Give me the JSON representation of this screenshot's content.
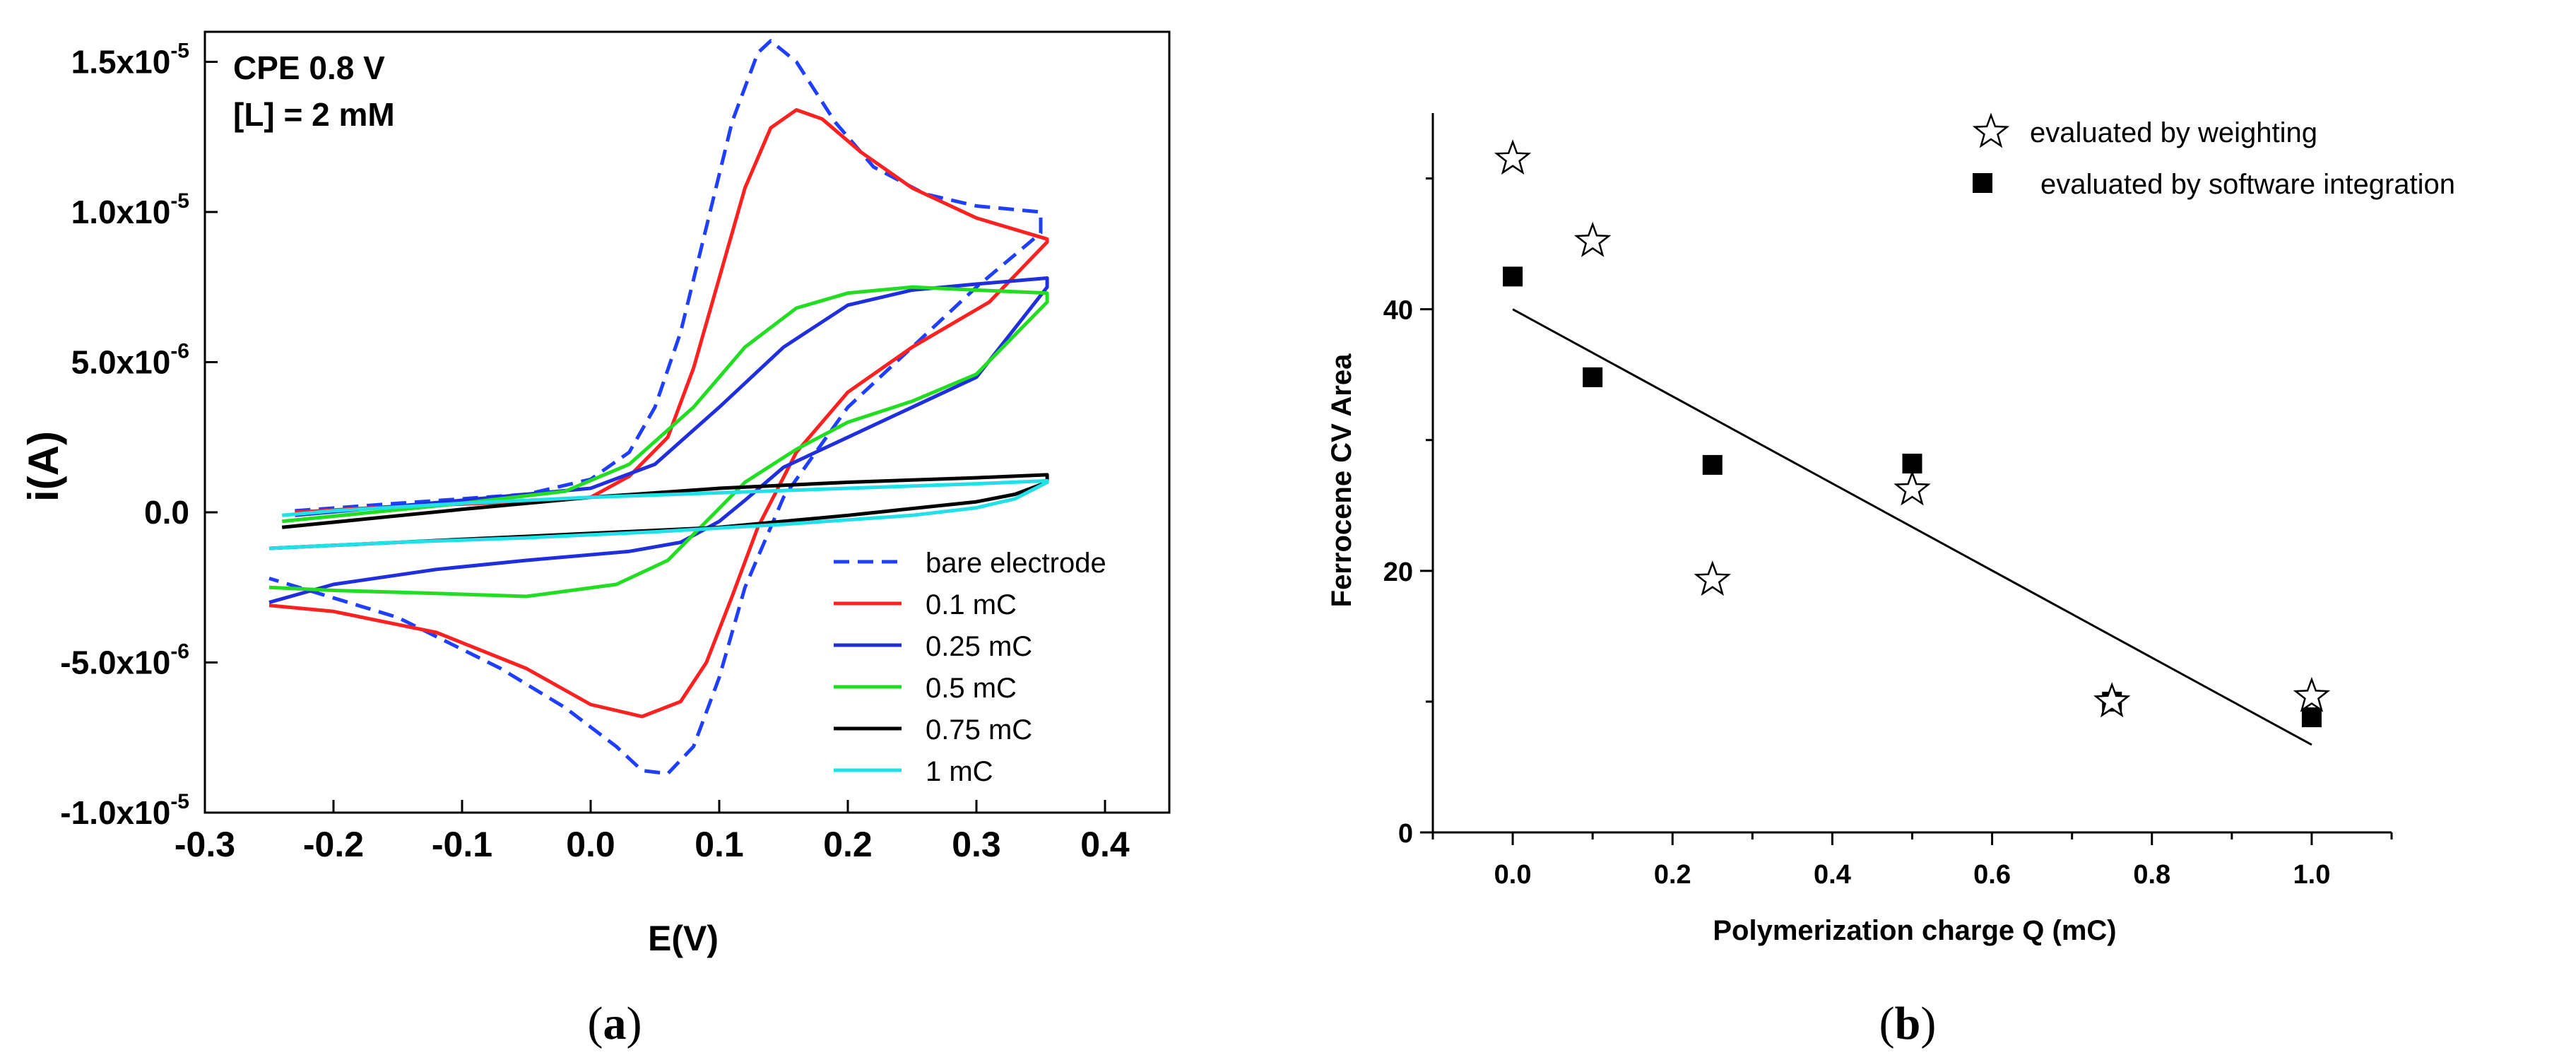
{
  "chart_data": [
    {
      "type": "line",
      "panel_label": "(a)",
      "panel_label_bold": "a",
      "annotation": [
        "CPE 0.8 V",
        "[L] = 2 mM"
      ],
      "xlabel": "E(V)",
      "ylabel": "i(A)",
      "xlim": [
        -0.3,
        0.45
      ],
      "ylim": [
        -1e-05,
        1.6e-05
      ],
      "x_ticks": [
        -0.3,
        -0.2,
        -0.1,
        0.0,
        0.1,
        0.2,
        0.3,
        0.4
      ],
      "x_tick_labels": [
        "-0.3",
        "-0.2",
        "-0.1",
        "0.0",
        "0.1",
        "0.2",
        "0.3",
        "0.4"
      ],
      "y_ticks": [
        -1e-05,
        -5e-06,
        0,
        5e-06,
        1e-05,
        1.5e-05
      ],
      "y_tick_labels": [
        {
          "mantissa": "-1.0x10",
          "exp": "-5"
        },
        {
          "mantissa": "-5.0x10",
          "exp": "-6"
        },
        {
          "mantissa": "0.0",
          "exp": ""
        },
        {
          "mantissa": "5.0x10",
          "exp": "-6"
        },
        {
          "mantissa": "1.0x10",
          "exp": "-5"
        },
        {
          "mantissa": "1.5x10",
          "exp": "-5"
        }
      ],
      "legend_position": "lower-right",
      "series": [
        {
          "name": "bare electrode",
          "color": "#1f3fff",
          "dash": true,
          "points": [
            [
              -0.23,
              5e-08
            ],
            [
              -0.15,
              3e-07
            ],
            [
              -0.05,
              6e-07
            ],
            [
              0.0,
              1.1e-06
            ],
            [
              0.03,
              2e-06
            ],
            [
              0.05,
              3.5e-06
            ],
            [
              0.07,
              6e-06
            ],
            [
              0.09,
              9.5e-06
            ],
            [
              0.11,
              1.3e-05
            ],
            [
              0.13,
              1.53e-05
            ],
            [
              0.14,
              1.57e-05
            ],
            [
              0.16,
              1.5e-05
            ],
            [
              0.19,
              1.3e-05
            ],
            [
              0.22,
              1.15e-05
            ],
            [
              0.26,
              1.06e-05
            ],
            [
              0.3,
              1.02e-05
            ],
            [
              0.35,
              1e-05
            ],
            [
              0.35,
              9.3e-06
            ],
            [
              0.3,
              7.5e-06
            ],
            [
              0.25,
              5.5e-06
            ],
            [
              0.2,
              3.5e-06
            ],
            [
              0.15,
              5e-07
            ],
            [
              0.12,
              -2.5e-06
            ],
            [
              0.1,
              -5.5e-06
            ],
            [
              0.08,
              -7.8e-06
            ],
            [
              0.06,
              -8.7e-06
            ],
            [
              0.04,
              -8.6e-06
            ],
            [
              0.02,
              -7.8e-06
            ],
            [
              -0.02,
              -6.5e-06
            ],
            [
              -0.07,
              -5.2e-06
            ],
            [
              -0.15,
              -3.5e-06
            ],
            [
              -0.25,
              -2.2e-06
            ]
          ]
        },
        {
          "name": "0.1 mC",
          "color": "#ff2020",
          "dash": false,
          "points": [
            [
              -0.23,
              0.0
            ],
            [
              -0.15,
              2e-07
            ],
            [
              -0.05,
              3.5e-07
            ],
            [
              0.0,
              5e-07
            ],
            [
              0.03,
              1.2e-06
            ],
            [
              0.06,
              2.5e-06
            ],
            [
              0.08,
              4.8e-06
            ],
            [
              0.1,
              7.8e-06
            ],
            [
              0.12,
              1.08e-05
            ],
            [
              0.14,
              1.28e-05
            ],
            [
              0.16,
              1.34e-05
            ],
            [
              0.18,
              1.31e-05
            ],
            [
              0.21,
              1.2e-05
            ],
            [
              0.25,
              1.08e-05
            ],
            [
              0.3,
              9.8e-06
            ],
            [
              0.355,
              9.1e-06
            ],
            [
              0.355,
              9e-06
            ],
            [
              0.31,
              7e-06
            ],
            [
              0.25,
              5.5e-06
            ],
            [
              0.2,
              4e-06
            ],
            [
              0.16,
              2e-06
            ],
            [
              0.13,
              -5e-07
            ],
            [
              0.11,
              -2.8e-06
            ],
            [
              0.09,
              -5e-06
            ],
            [
              0.07,
              -6.3e-06
            ],
            [
              0.04,
              -6.8e-06
            ],
            [
              0.0,
              -6.4e-06
            ],
            [
              -0.05,
              -5.2e-06
            ],
            [
              -0.12,
              -4e-06
            ],
            [
              -0.2,
              -3.3e-06
            ],
            [
              -0.25,
              -3.1e-06
            ]
          ]
        },
        {
          "name": "0.25 mC",
          "color": "#1f2fdd",
          "dash": false,
          "points": [
            [
              -0.23,
              -1e-07
            ],
            [
              -0.1,
              4e-07
            ],
            [
              0.0,
              8e-07
            ],
            [
              0.05,
              1.6e-06
            ],
            [
              0.1,
              3.5e-06
            ],
            [
              0.15,
              5.5e-06
            ],
            [
              0.2,
              6.9e-06
            ],
            [
              0.25,
              7.4e-06
            ],
            [
              0.3,
              7.6e-06
            ],
            [
              0.355,
              7.8e-06
            ],
            [
              0.355,
              7.5e-06
            ],
            [
              0.3,
              4.5e-06
            ],
            [
              0.25,
              3.5e-06
            ],
            [
              0.2,
              2.5e-06
            ],
            [
              0.15,
              1.5e-06
            ],
            [
              0.12,
              4e-07
            ],
            [
              0.1,
              -3e-07
            ],
            [
              0.07,
              -1e-06
            ],
            [
              0.03,
              -1.3e-06
            ],
            [
              -0.05,
              -1.6e-06
            ],
            [
              -0.12,
              -1.9e-06
            ],
            [
              -0.2,
              -2.4e-06
            ],
            [
              -0.25,
              -3e-06
            ]
          ]
        },
        {
          "name": "0.5 mC",
          "color": "#22dd22",
          "dash": false,
          "points": [
            [
              -0.24,
              -3e-07
            ],
            [
              -0.1,
              3e-07
            ],
            [
              -0.02,
              7e-07
            ],
            [
              0.03,
              1.6e-06
            ],
            [
              0.08,
              3.5e-06
            ],
            [
              0.12,
              5.5e-06
            ],
            [
              0.16,
              6.8e-06
            ],
            [
              0.2,
              7.3e-06
            ],
            [
              0.25,
              7.5e-06
            ],
            [
              0.3,
              7.4e-06
            ],
            [
              0.355,
              7.3e-06
            ],
            [
              0.355,
              7e-06
            ],
            [
              0.3,
              4.6e-06
            ],
            [
              0.25,
              3.7e-06
            ],
            [
              0.2,
              3e-06
            ],
            [
              0.16,
              2.1e-06
            ],
            [
              0.12,
              1e-06
            ],
            [
              0.09,
              -3e-07
            ],
            [
              0.06,
              -1.6e-06
            ],
            [
              0.02,
              -2.4e-06
            ],
            [
              -0.05,
              -2.8e-06
            ],
            [
              -0.12,
              -2.7e-06
            ],
            [
              -0.2,
              -2.6e-06
            ],
            [
              -0.25,
              -2.5e-06
            ]
          ]
        },
        {
          "name": "0.75 mC",
          "color": "#000000",
          "dash": false,
          "points": [
            [
              -0.24,
              -5e-07
            ],
            [
              -0.1,
              1e-07
            ],
            [
              0.0,
              5e-07
            ],
            [
              0.1,
              8e-07
            ],
            [
              0.2,
              1e-06
            ],
            [
              0.3,
              1.15e-06
            ],
            [
              0.355,
              1.25e-06
            ],
            [
              0.355,
              1e-06
            ],
            [
              0.33,
              6e-07
            ],
            [
              0.3,
              3.5e-07
            ],
            [
              0.2,
              -1e-07
            ],
            [
              0.1,
              -5e-07
            ],
            [
              0.0,
              -7e-07
            ],
            [
              -0.1,
              -9e-07
            ],
            [
              -0.2,
              -1.1e-06
            ],
            [
              -0.25,
              -1.2e-06
            ]
          ]
        },
        {
          "name": "1 mC",
          "color": "#22e0e8",
          "dash": false,
          "points": [
            [
              -0.25,
              -1.2e-06
            ],
            [
              -0.15,
              -1e-06
            ],
            [
              -0.05,
              -8.5e-07
            ],
            [
              0.05,
              -6.5e-07
            ],
            [
              0.15,
              -4e-07
            ],
            [
              0.25,
              -1e-07
            ],
            [
              0.3,
              1.5e-07
            ],
            [
              0.33,
              4.5e-07
            ],
            [
              0.355,
              1e-06
            ],
            [
              0.355,
              1.05e-06
            ],
            [
              0.3,
              9.5e-07
            ],
            [
              0.2,
              8e-07
            ],
            [
              0.1,
              6.5e-07
            ],
            [
              0.0,
              5e-07
            ],
            [
              -0.1,
              3e-07
            ],
            [
              -0.2,
              5e-08
            ],
            [
              -0.24,
              -1e-07
            ]
          ]
        }
      ]
    },
    {
      "type": "scatter",
      "panel_label": "(b)",
      "panel_label_bold": "b",
      "xlabel": "Polymerization charge Q (mC)",
      "ylabel": "Ferrocene CV Area",
      "xlim": [
        -0.1,
        1.1
      ],
      "ylim": [
        0,
        55
      ],
      "x_ticks": [
        0.0,
        0.2,
        0.4,
        0.6,
        0.8,
        1.0
      ],
      "x_tick_labels": [
        "0.0",
        "0.2",
        "0.4",
        "0.6",
        "0.8",
        "1.0"
      ],
      "y_ticks": [
        0,
        20,
        40
      ],
      "y_tick_labels": [
        "0",
        "20",
        "40"
      ],
      "legend_position": "top-right",
      "series": [
        {
          "name": "evaluated by weighting",
          "marker": "star",
          "x": [
            0.0,
            0.1,
            0.25,
            0.5,
            0.75,
            1.0
          ],
          "y": [
            51.5,
            45.2,
            19.3,
            26.2,
            10.0,
            10.4
          ]
        },
        {
          "name": "evaluated by software integration",
          "marker": "square",
          "x": [
            0.0,
            0.1,
            0.25,
            0.5,
            0.75,
            1.0
          ],
          "y": [
            42.5,
            34.8,
            28.1,
            28.2,
            10.0,
            8.8
          ]
        }
      ],
      "fit_line": {
        "x": [
          0.0,
          1.0
        ],
        "y": [
          40.0,
          6.7
        ]
      }
    }
  ]
}
